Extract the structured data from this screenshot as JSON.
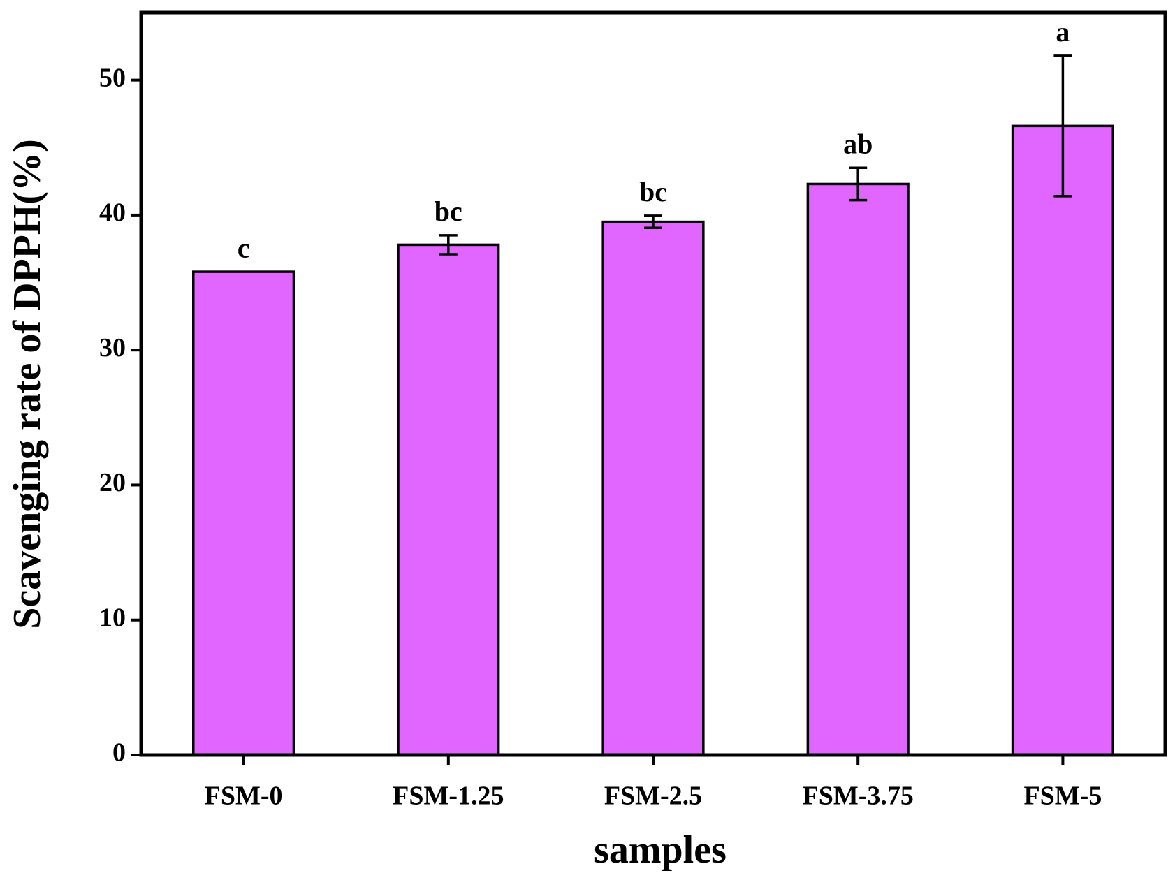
{
  "chart_data": {
    "type": "bar",
    "x_label": "samples",
    "y_label": "Scavenging rate of  DPPH(%)",
    "categories": [
      "FSM-0",
      "FSM-1.25",
      "FSM-2.5",
      "FSM-3.75",
      "FSM-5"
    ],
    "values": [
      35.8,
      37.8,
      39.5,
      42.3,
      46.6
    ],
    "errors": [
      0,
      0.7,
      0.45,
      1.2,
      5.2
    ],
    "annotations": [
      "c",
      "bc",
      "bc",
      "ab",
      "a"
    ],
    "color": "#e066ff",
    "ylim": [
      0,
      55
    ],
    "yticks": [
      0,
      10,
      20,
      30,
      40,
      50
    ],
    "grid": false
  }
}
